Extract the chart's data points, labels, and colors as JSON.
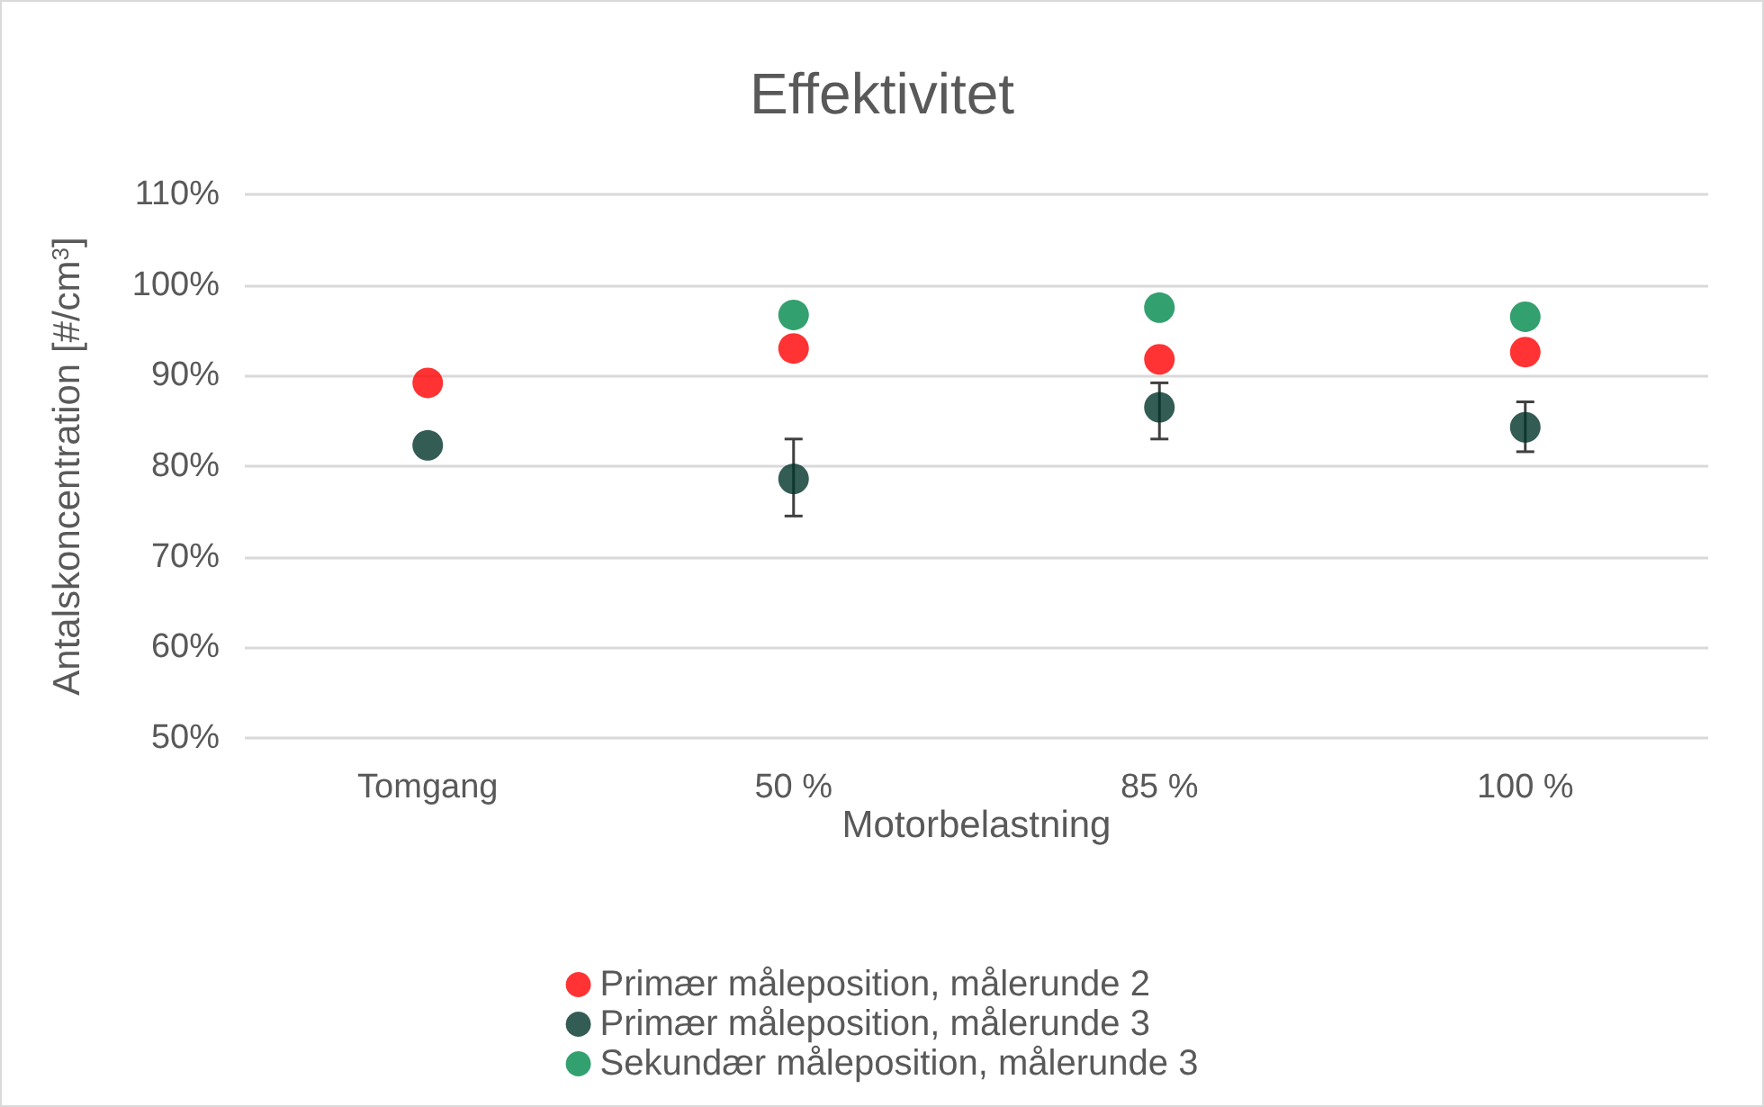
{
  "chart_data": {
    "type": "scatter",
    "title": "Effektivitet",
    "xlabel": "Motorbelastning",
    "ylabel": "Antalskoncentration [#/cm$^{3}$]",
    "categories": [
      "Tomgang",
      "50 %",
      "85 %",
      "100 %"
    ],
    "series": [
      {
        "name": "Primær måleposition, målerunde 2",
        "color": "#ff0000",
        "values": [
          89.2,
          93.0,
          91.8,
          92.6
        ]
      },
      {
        "name": "Primær måleposition, målerunde 3",
        "color": "#00332a",
        "values": [
          82.3,
          78.6,
          86.5,
          84.3
        ],
        "errors": [
          null,
          [
            74.5,
            83.0
          ],
          [
            83.0,
            89.2
          ],
          [
            81.6,
            87.1
          ]
        ]
      },
      {
        "name": "Sekundær måleposition, målerunde 3",
        "color": "#00884b",
        "values": [
          null,
          96.7,
          97.5,
          96.5
        ]
      }
    ],
    "ylim": [
      50,
      110
    ],
    "yticks": [
      {
        "value": 50,
        "label": "50%"
      },
      {
        "value": 60,
        "label": "60%"
      },
      {
        "value": 70,
        "label": "70%"
      },
      {
        "value": 80,
        "label": "80%"
      },
      {
        "value": 90,
        "label": "90%"
      },
      {
        "value": 100,
        "label": "100%"
      },
      {
        "value": 110,
        "label": "110%"
      }
    ],
    "grid": "y",
    "legend": "bottom",
    "marker": "circle"
  }
}
